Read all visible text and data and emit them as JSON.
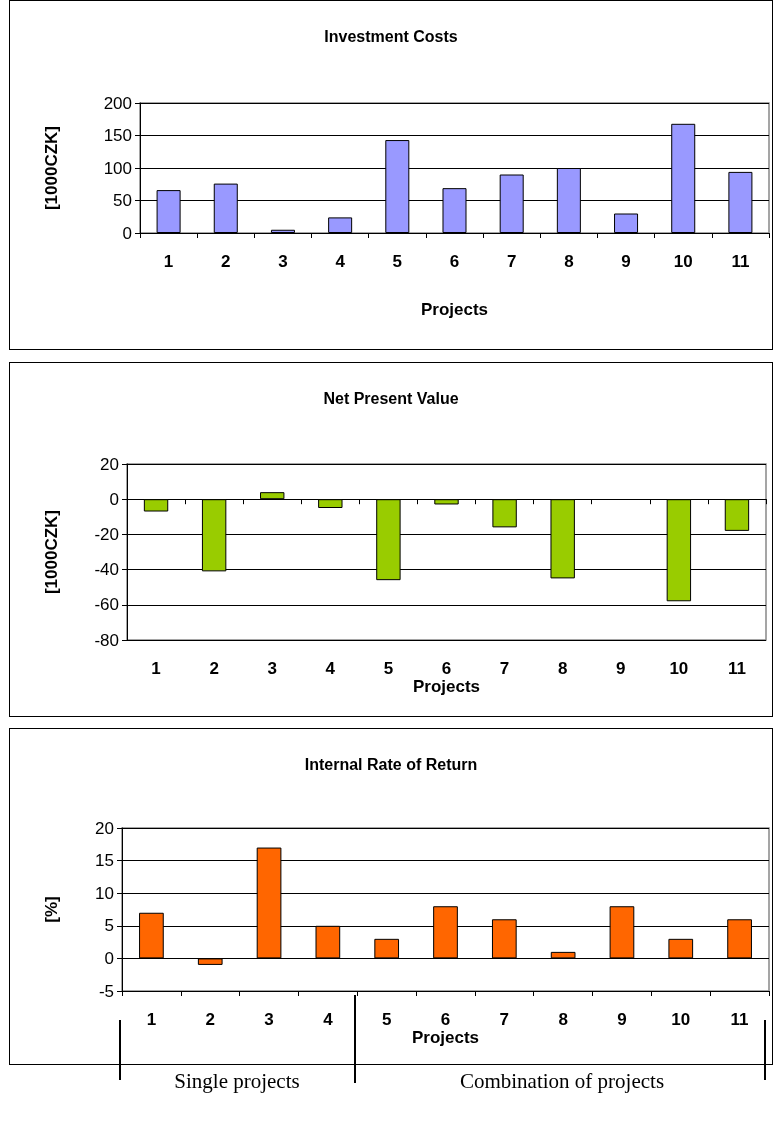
{
  "chart_data": [
    {
      "type": "bar",
      "title": "Investment Costs",
      "xlabel": "Projects",
      "ylabel": "[1000CZK]",
      "categories": [
        "1",
        "2",
        "3",
        "4",
        "5",
        "6",
        "7",
        "8",
        "9",
        "10",
        "11"
      ],
      "values": [
        66,
        76,
        5,
        24,
        143,
        69,
        90,
        100,
        30,
        168,
        94
      ],
      "color": "#9999ff",
      "ylim": [
        0,
        200
      ],
      "yticks": [
        0,
        50,
        100,
        150,
        200
      ],
      "grid": "y"
    },
    {
      "type": "bar",
      "title": "Net Present Value",
      "xlabel": "Projects",
      "ylabel": "[1000CZK]",
      "categories": [
        "1",
        "2",
        "3",
        "4",
        "5",
        "6",
        "7",
        "8",
        "9",
        "10",
        "11"
      ],
      "values": [
        -7,
        -41,
        4,
        -5,
        -46,
        -3,
        -16,
        -45,
        0,
        -58,
        -18
      ],
      "color": "#99cc00",
      "ylim": [
        -80,
        20
      ],
      "yticks": [
        -80,
        -60,
        -40,
        -20,
        0,
        20
      ],
      "grid": "y"
    },
    {
      "type": "bar",
      "title": "Internal Rate of Return",
      "xlabel": "Projects",
      "ylabel": "[%]",
      "categories": [
        "1",
        "2",
        "3",
        "4",
        "5",
        "6",
        "7",
        "8",
        "9",
        "10",
        "11"
      ],
      "values": [
        7,
        -1,
        17,
        5,
        3,
        8,
        6,
        1,
        8,
        3,
        6
      ],
      "color": "#ff6600",
      "ylim": [
        -5,
        20
      ],
      "yticks": [
        -5,
        0,
        5,
        10,
        15,
        20
      ],
      "grid": "y",
      "annotations": [
        "Single projects",
        "Combination of projects"
      ]
    }
  ]
}
